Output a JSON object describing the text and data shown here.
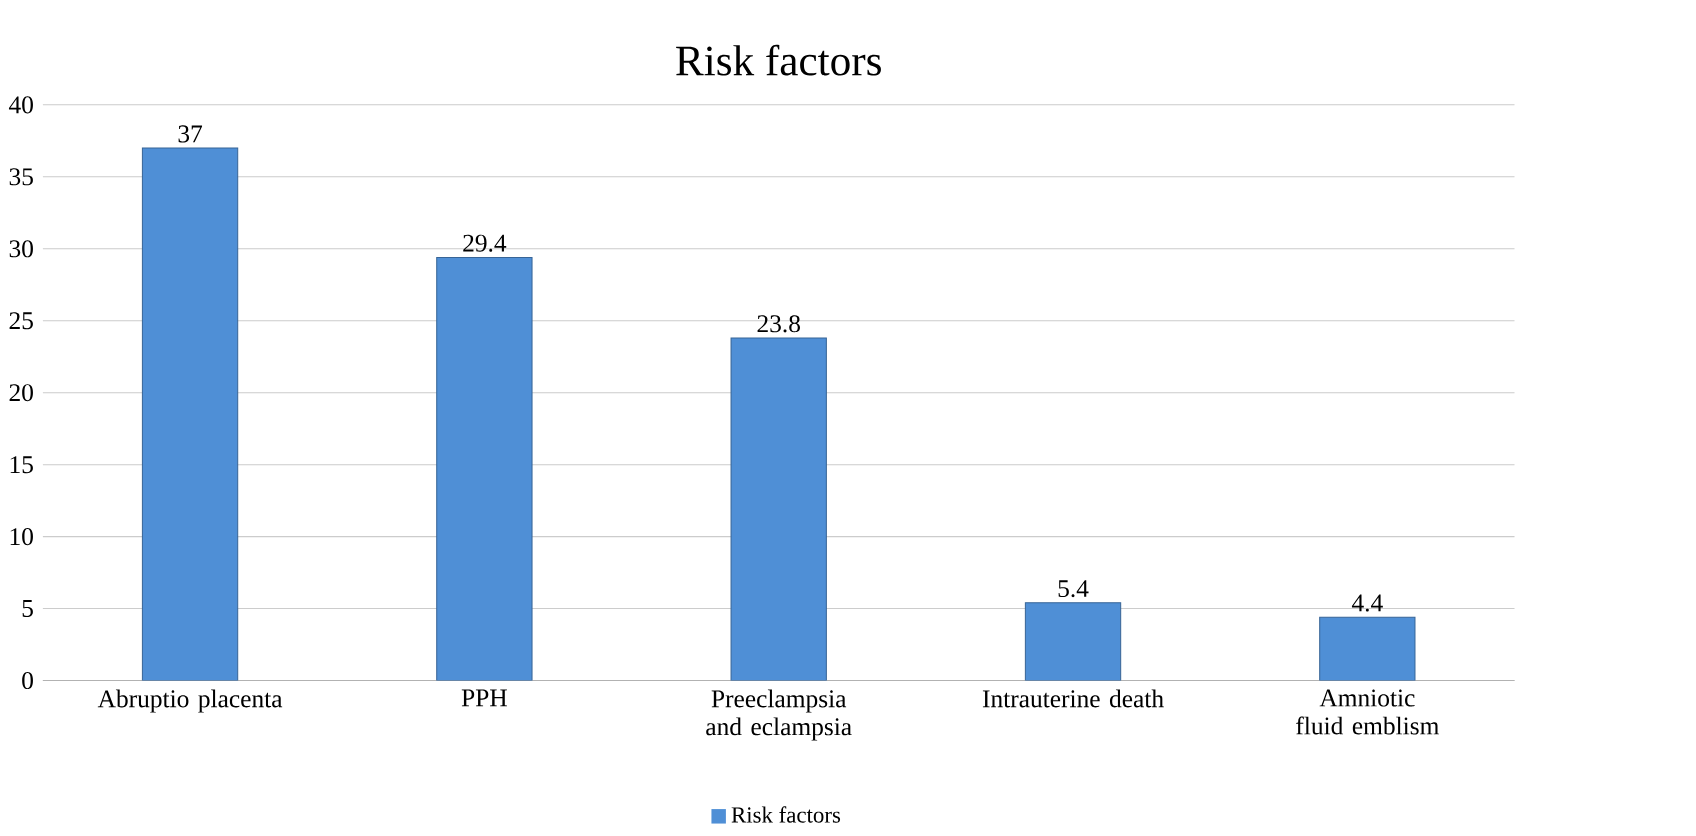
{
  "chart_data": {
    "type": "bar",
    "title": "Risk factors",
    "categories": [
      "Abruptio placenta",
      "PPH",
      "Preeclampsia and eclampsia",
      "Intrauterine death",
      "Amniotic fluid emblism"
    ],
    "series": [
      {
        "name": "Risk factors",
        "color": "#4f8fd6",
        "values": [
          37,
          29.4,
          23.8,
          5.4,
          4.4
        ]
      }
    ],
    "ylim": [
      0,
      40
    ],
    "yticks": [
      0,
      5,
      10,
      15,
      20,
      25,
      30,
      35,
      40
    ],
    "grid": "y",
    "data_labels": true,
    "legend": "bottom"
  }
}
